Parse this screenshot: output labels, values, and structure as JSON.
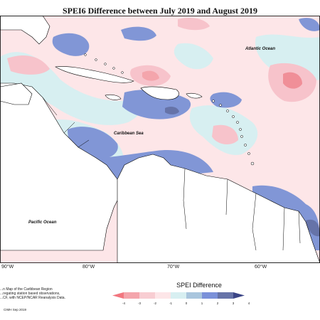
{
  "title": "SPEI6 Difference between July 2019 and August 2019",
  "ocean_labels": {
    "atlantic": "Atlantic Ocean",
    "caribbean": "Caribbean Sea",
    "pacific": "Pacific Ocean"
  },
  "longitude_labels": [
    "90°W",
    "80°W",
    "70°W",
    "60°W"
  ],
  "caption_lines": [
    "...n Map of the Caribbean Region",
    "...regating station based observations,",
    "...CF, with NCEP/NCAR Reanalysis Data."
  ],
  "credit": "CIMH Sep 2019",
  "legend": {
    "title": "SPEI Difference",
    "ticks": [
      "-4",
      "-3",
      "-2",
      "-1",
      "0",
      "1",
      "2",
      "3",
      "4"
    ],
    "colors": [
      "#f2767f",
      "#f4a5ac",
      "#f8cdd2",
      "#fde6e8",
      "#d7eff1",
      "#a9c5dd",
      "#7b91d9",
      "#6673a8",
      "#3b4586"
    ]
  },
  "colors": {
    "positive_light": "#d7eff1",
    "positive_mid": "#8196d6",
    "negative_light": "#fde6e8",
    "negative_mid": "#f7c3cb",
    "negative_strong": "#f08f98",
    "land": "#ffffff"
  }
}
